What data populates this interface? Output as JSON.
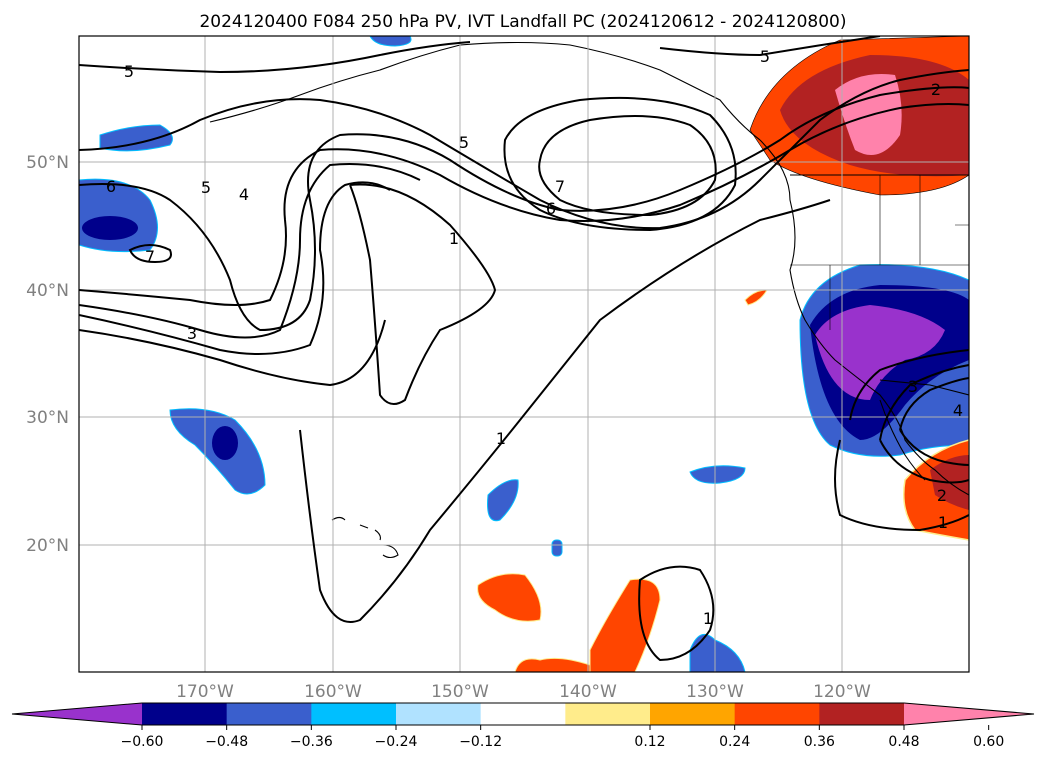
{
  "figure": {
    "title": "2024120400 F084 250 hPa PV, IVT Landfall PC (2024120612 - 2024120800)"
  },
  "map": {
    "projection": "lat-lon",
    "lon_range": [
      -180,
      -110
    ],
    "lat_range": [
      10,
      60
    ],
    "gridlines": true,
    "lon_ticks": [
      "170°W",
      "160°W",
      "150°W",
      "140°W",
      "130°W",
      "120°W"
    ],
    "lat_ticks": [
      "20°N",
      "30°N",
      "40°N",
      "50°N"
    ],
    "contour_labels": [
      "5",
      "5",
      "2",
      "5",
      "7",
      "6",
      "6",
      "5",
      "4",
      "1",
      "7",
      "3",
      "1",
      "3",
      "2",
      "1",
      "1",
      "4"
    ]
  },
  "colorbar": {
    "tick_labels": [
      "−0.60",
      "−0.48",
      "−0.36",
      "−0.24",
      "−0.12",
      "0.12",
      "0.24",
      "0.36",
      "0.48",
      "0.60"
    ],
    "colors": [
      "#9932cc",
      "#00008b",
      "#3a5fcd",
      "#00bfff",
      "#b0e2ff",
      "#ffffff",
      "#ffec8b",
      "#ffa500",
      "#ff4500",
      "#b22222",
      "#ff82ab"
    ],
    "extend": "both"
  },
  "chart_data": {
    "type": "heatmap",
    "title": "2024120400 F084 250 hPa PV, IVT Landfall PC (2024120612 - 2024120800)",
    "xlabel": "",
    "ylabel": "",
    "x_ticks": [
      "170°W",
      "160°W",
      "150°W",
      "140°W",
      "130°W",
      "120°W"
    ],
    "y_ticks": [
      "20°N",
      "30°N",
      "40°N",
      "50°N"
    ],
    "color_levels": [
      -0.6,
      -0.48,
      -0.36,
      -0.24,
      -0.12,
      0.12,
      0.24,
      0.36,
      0.48,
      0.6
    ],
    "contour_levels": [
      1,
      2,
      3,
      4,
      5,
      6,
      7
    ],
    "grid": true
  }
}
